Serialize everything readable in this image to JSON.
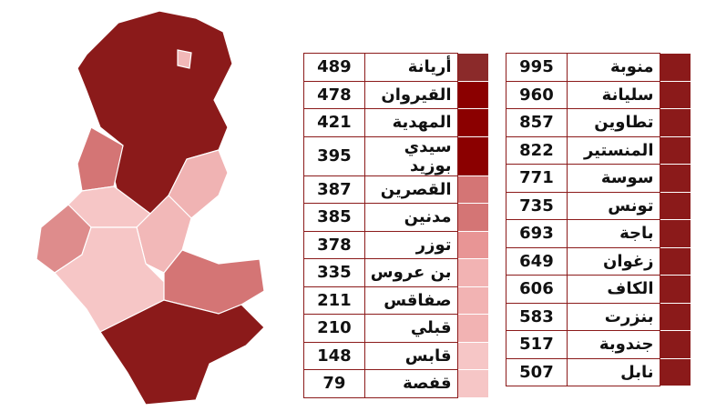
{
  "tables": [
    {
      "rows": [
        [
          "أريانة",
          "489"
        ],
        [
          "القيروان",
          "478"
        ],
        [
          "المهدية",
          "421"
        ],
        [
          "سيدي بوزيد",
          "395"
        ],
        [
          "القصرين",
          "387"
        ],
        [
          "مدنين",
          "385"
        ],
        [
          "توزر",
          "378"
        ],
        [
          "بن عروس",
          "335"
        ],
        [
          "صفاقس",
          "211"
        ],
        [
          "قبلي",
          "210"
        ],
        [
          "قابس",
          "148"
        ],
        [
          "قفصة",
          "79"
        ]
      ]
    },
    {
      "rows": [
        [
          "منوبة",
          "995"
        ],
        [
          "سليانة",
          "960"
        ],
        [
          "تطاوين",
          "857"
        ],
        [
          "المنستير",
          "822"
        ],
        [
          "سوسة",
          "771"
        ],
        [
          "تونس",
          "735"
        ],
        [
          "باجة",
          "693"
        ],
        [
          "زغوان",
          "649"
        ],
        [
          "الكاف",
          "606"
        ],
        [
          "بنزرت",
          "583"
        ],
        [
          "جندوبة",
          "517"
        ],
        [
          "نابل",
          "507"
        ]
      ]
    }
  ]
}
